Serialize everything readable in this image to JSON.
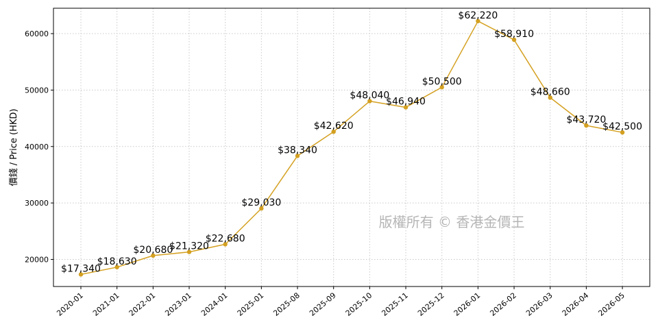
{
  "chart_data": {
    "type": "line",
    "title": "",
    "xlabel": "",
    "ylabel": "價錢 / Price (HKD)",
    "categories": [
      "2020-01",
      "2021-01",
      "2022-01",
      "2023-01",
      "2024-01",
      "2025-01",
      "2025-08",
      "2025-09",
      "2025-10",
      "2025-11",
      "2025-12",
      "2026-01",
      "2026-02",
      "2026-03",
      "2026-04",
      "2026-05"
    ],
    "series": [
      {
        "values": [
          17340,
          18630,
          20680,
          21320,
          22680,
          29030,
          38340,
          42620,
          48040,
          46940,
          50500,
          62220,
          58910,
          48660,
          43720,
          42500
        ],
        "data_labels": [
          "$17,340",
          "$18,630",
          "$20,680",
          "$21,320",
          "$22,680",
          "$29,030",
          "$38,340",
          "$42,620",
          "$48,040",
          "$46,940",
          "$50,500",
          "$62,220",
          "$58,910",
          "$48,660",
          "$43,720",
          "$42,500"
        ],
        "color": "#D4A020"
      }
    ],
    "ylim": [
      15200,
      64500
    ],
    "yticks": [
      20000,
      30000,
      40000,
      50000,
      60000
    ],
    "ytick_labels": [
      "20000",
      "30000",
      "40000",
      "50000",
      "60000"
    ],
    "grid": true,
    "grid_style": "dotted",
    "watermark": "版權所有 © 香港金價王"
  }
}
